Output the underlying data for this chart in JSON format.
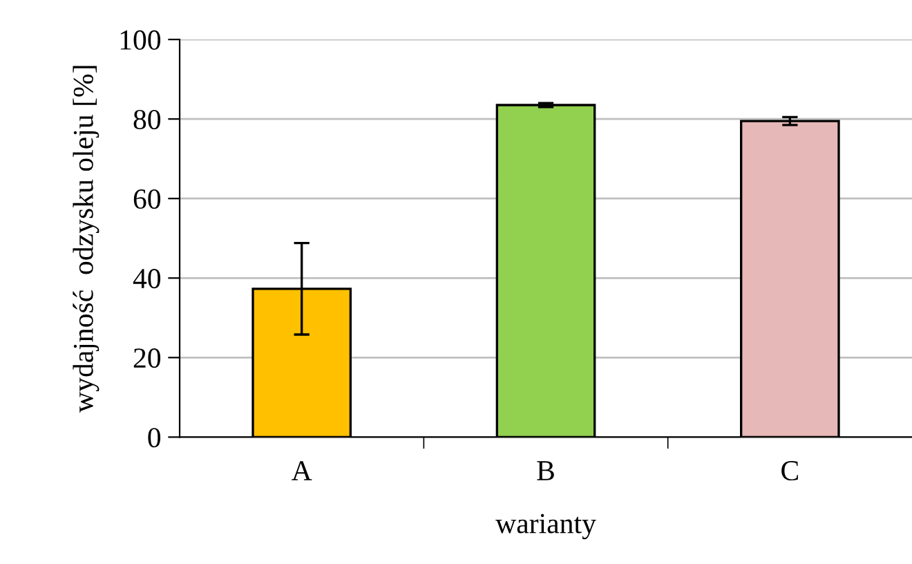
{
  "chart_data": {
    "type": "bar",
    "xlabel": "warianty",
    "ylabel": "wydajność  odzysku oleju [%]",
    "categories": [
      "A",
      "B",
      "C"
    ],
    "values": [
      37.3,
      83.5,
      79.5
    ],
    "errors": [
      11.5,
      0.5,
      1
    ],
    "colors": [
      "#ffc000",
      "#92d050",
      "#e6b8b7"
    ],
    "ylim": [
      0,
      100
    ],
    "yticks": [
      0,
      20,
      40,
      60,
      80,
      100
    ],
    "grid": "y",
    "legend": false
  }
}
